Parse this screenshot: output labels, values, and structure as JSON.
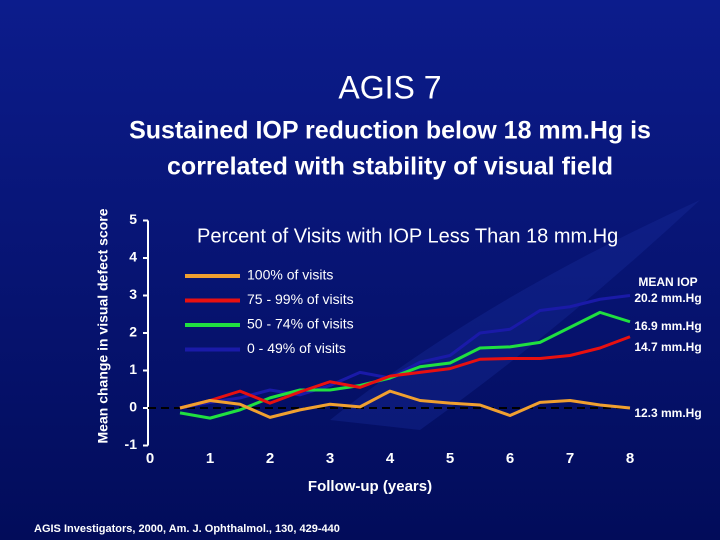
{
  "slide_title": "AGIS 7",
  "slide_subtitle": [
    "Sustained IOP reduction below 18 mm.Hg is",
    "correlated with stability of visual field"
  ],
  "footnote": "AGIS Investigators, 2000, Am. J. Ophthalmol., 130, 429-440",
  "chart_data": {
    "type": "line",
    "title": "Percent of Visits with IOP Less Than 18 mm.Hg",
    "x_label": "Follow-up (years)",
    "y_label": "Mean change in visual defect score",
    "x": [
      0.5,
      1,
      1.5,
      2,
      2.5,
      3,
      3.5,
      4,
      4.5,
      5,
      5.5,
      6,
      6.5,
      7,
      7.5,
      8
    ],
    "series": [
      {
        "name": "100% of visits",
        "color": "#f0a030",
        "values": [
          0,
          0.2,
          0.1,
          -0.25,
          -0.05,
          0.1,
          0.03,
          0.45,
          0.2,
          0.13,
          0.08,
          -0.2,
          0.15,
          0.2,
          0.08,
          0
        ]
      },
      {
        "name": "75 - 99% of visits",
        "color": "#e81010",
        "values": [
          0,
          0.2,
          0.45,
          0.13,
          0.43,
          0.7,
          0.55,
          0.85,
          0.95,
          1.05,
          1.3,
          1.32,
          1.32,
          1.4,
          1.6,
          1.9
        ]
      },
      {
        "name": "50 - 74% of visits",
        "color": "#20e040",
        "values": [
          -0.13,
          -0.27,
          -0.05,
          0.27,
          0.48,
          0.48,
          0.6,
          0.8,
          1.1,
          1.2,
          1.6,
          1.63,
          1.75,
          2.15,
          2.55,
          2.3
        ]
      },
      {
        "name": "0 - 49% of visits",
        "color": "#1a1aa8",
        "values": [
          0,
          0.15,
          0.27,
          0.48,
          0.35,
          0.6,
          0.95,
          0.8,
          1.22,
          1.4,
          2.0,
          2.1,
          2.6,
          2.7,
          2.9,
          3.0
        ]
      }
    ],
    "xlim": [
      0,
      8
    ],
    "xticks": [
      0,
      1,
      2,
      3,
      4,
      5,
      6,
      7,
      8
    ],
    "ylim": [
      -1,
      5
    ],
    "yticks": [
      -1,
      0,
      1,
      2,
      3,
      4,
      5
    ],
    "annotations": [
      "MEAN IOP",
      "20.2 mm.Hg",
      "16.9 mm.Hg",
      "14.7 mm.Hg",
      "12.3 mm.Hg"
    ]
  }
}
